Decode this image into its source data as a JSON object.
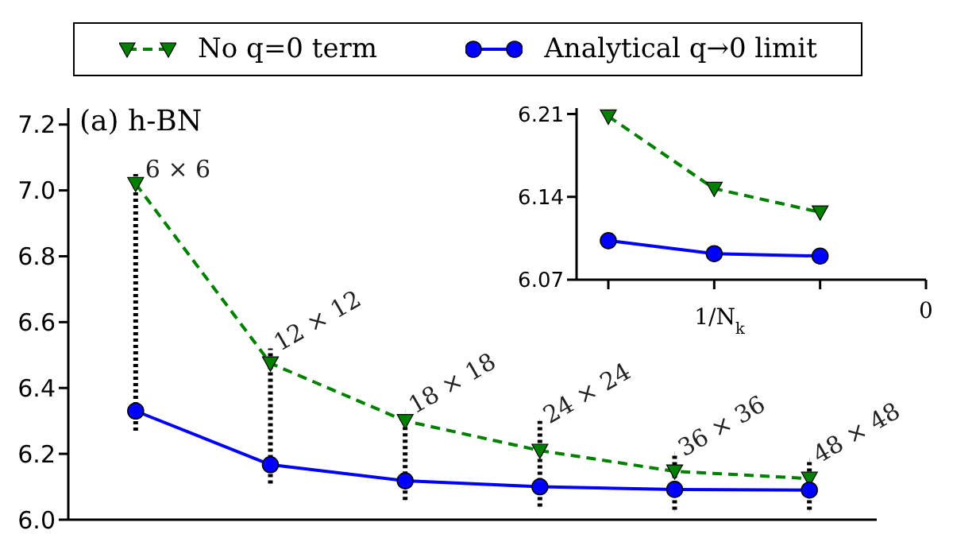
{
  "chart_data": [
    {
      "type": "line",
      "categories": [
        null,
        null,
        null,
        null,
        null,
        null
      ],
      "series": [
        {
          "name": "No q=0 term",
          "color": "#008000",
          "marker": "triangle",
          "line_style": "dashed",
          "values": [
            7.02,
            6.475,
            6.3,
            6.21,
            6.147,
            6.125
          ],
          "errors": [
            [
              6.27,
              7.05
            ],
            [
              6.11,
              6.52
            ],
            [
              6.06,
              6.33
            ],
            [
              6.04,
              6.3
            ],
            [
              6.03,
              6.2
            ],
            [
              6.03,
              6.18
            ]
          ]
        },
        {
          "name": "Analytical q→0 limit",
          "color": "#0000ff",
          "marker": "circle",
          "line_style": "solid",
          "values": [
            6.33,
            6.167,
            6.118,
            6.1,
            6.092,
            6.09
          ]
        }
      ],
      "annotations": [
        "(a) h-BN",
        "6 × 6",
        "12 × 12",
        "18 × 18",
        "24 × 24",
        "36 × 36",
        "48 × 48"
      ],
      "ylim": [
        6.0,
        7.25
      ],
      "yticks": [
        {
          "value": 6.0,
          "label": "6.0"
        },
        6.2,
        6.4,
        6.6,
        6.8,
        {
          "value": 7.0,
          "label": "7.0"
        },
        7.2
      ],
      "tick_labels": "y",
      "grid": false,
      "legend": "top"
    },
    {
      "type": "line",
      "categories": [
        null,
        null,
        null,
        "0"
      ],
      "xlabel": "1/N$_{k}$",
      "series": [
        {
          "color": "#008000",
          "marker": "triangle",
          "line_style": "dashed",
          "values": [
            6.208,
            6.147,
            6.127,
            null
          ]
        },
        {
          "color": "#0000ff",
          "marker": "circle",
          "line_style": "solid",
          "values": [
            6.103,
            6.092,
            6.09,
            null
          ]
        }
      ],
      "ylim": [
        6.07,
        6.215
      ],
      "yticks": [
        6.07,
        6.14,
        6.21
      ],
      "grid": false,
      "legend": false
    }
  ]
}
